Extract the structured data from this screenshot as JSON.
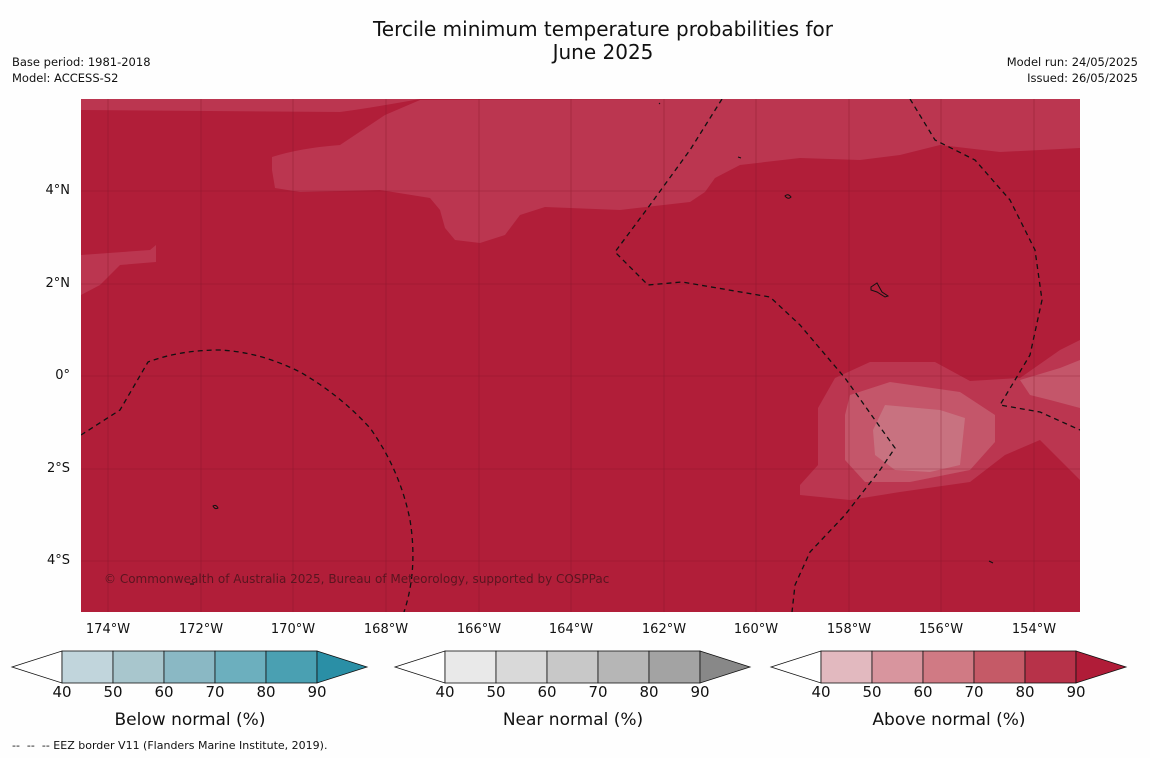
{
  "title_line1": "Tercile minimum temperature probabilities for",
  "title_line2": "June 2025",
  "base_period": "Base period: 1981-2018",
  "model": "Model: ACCESS-S2",
  "model_run": "Model run: 24/05/2025",
  "issued": "Issued: 26/05/2025",
  "copyright": "© Commonwealth of Australia 2025, Bureau of Meteorology, supported by COSPPac",
  "lat_labels": [
    "4°N",
    "2°N",
    "0°",
    "2°S",
    "4°S"
  ],
  "lon_labels": [
    "174°W",
    "172°W",
    "170°W",
    "168°W",
    "166°W",
    "164°W",
    "162°W",
    "160°W",
    "158°W",
    "156°W",
    "154°W"
  ],
  "colorbars": [
    {
      "label": "Below normal (%)",
      "ticks": [
        "40",
        "50",
        "60",
        "70",
        "80",
        "90"
      ],
      "colors": [
        "#c1d5dc",
        "#a8c6cd",
        "#8ab8c4",
        "#6cafbe",
        "#4aa0b2",
        "#2a8fa6"
      ]
    },
    {
      "label": "Near normal (%)",
      "ticks": [
        "40",
        "50",
        "60",
        "70",
        "80",
        "90"
      ],
      "colors": [
        "#e9e9e9",
        "#d9d9d9",
        "#c8c8c8",
        "#b6b6b6",
        "#a3a3a3",
        "#888888"
      ]
    },
    {
      "label": "Above normal (%)",
      "ticks": [
        "40",
        "50",
        "60",
        "70",
        "80",
        "90"
      ],
      "colors": [
        "#e2b9bf",
        "#d8959e",
        "#d07a84",
        "#c55a67",
        "#b73249",
        "#b01c38"
      ]
    }
  ],
  "footer": "--  --  -- EEZ border V11 (Flanders Marine Institute, 2019).",
  "map_colors": {
    "base": "#b11e39",
    "level_80": "#bb3650",
    "level_70": "#c4566a",
    "level_60": "#c87280"
  }
}
